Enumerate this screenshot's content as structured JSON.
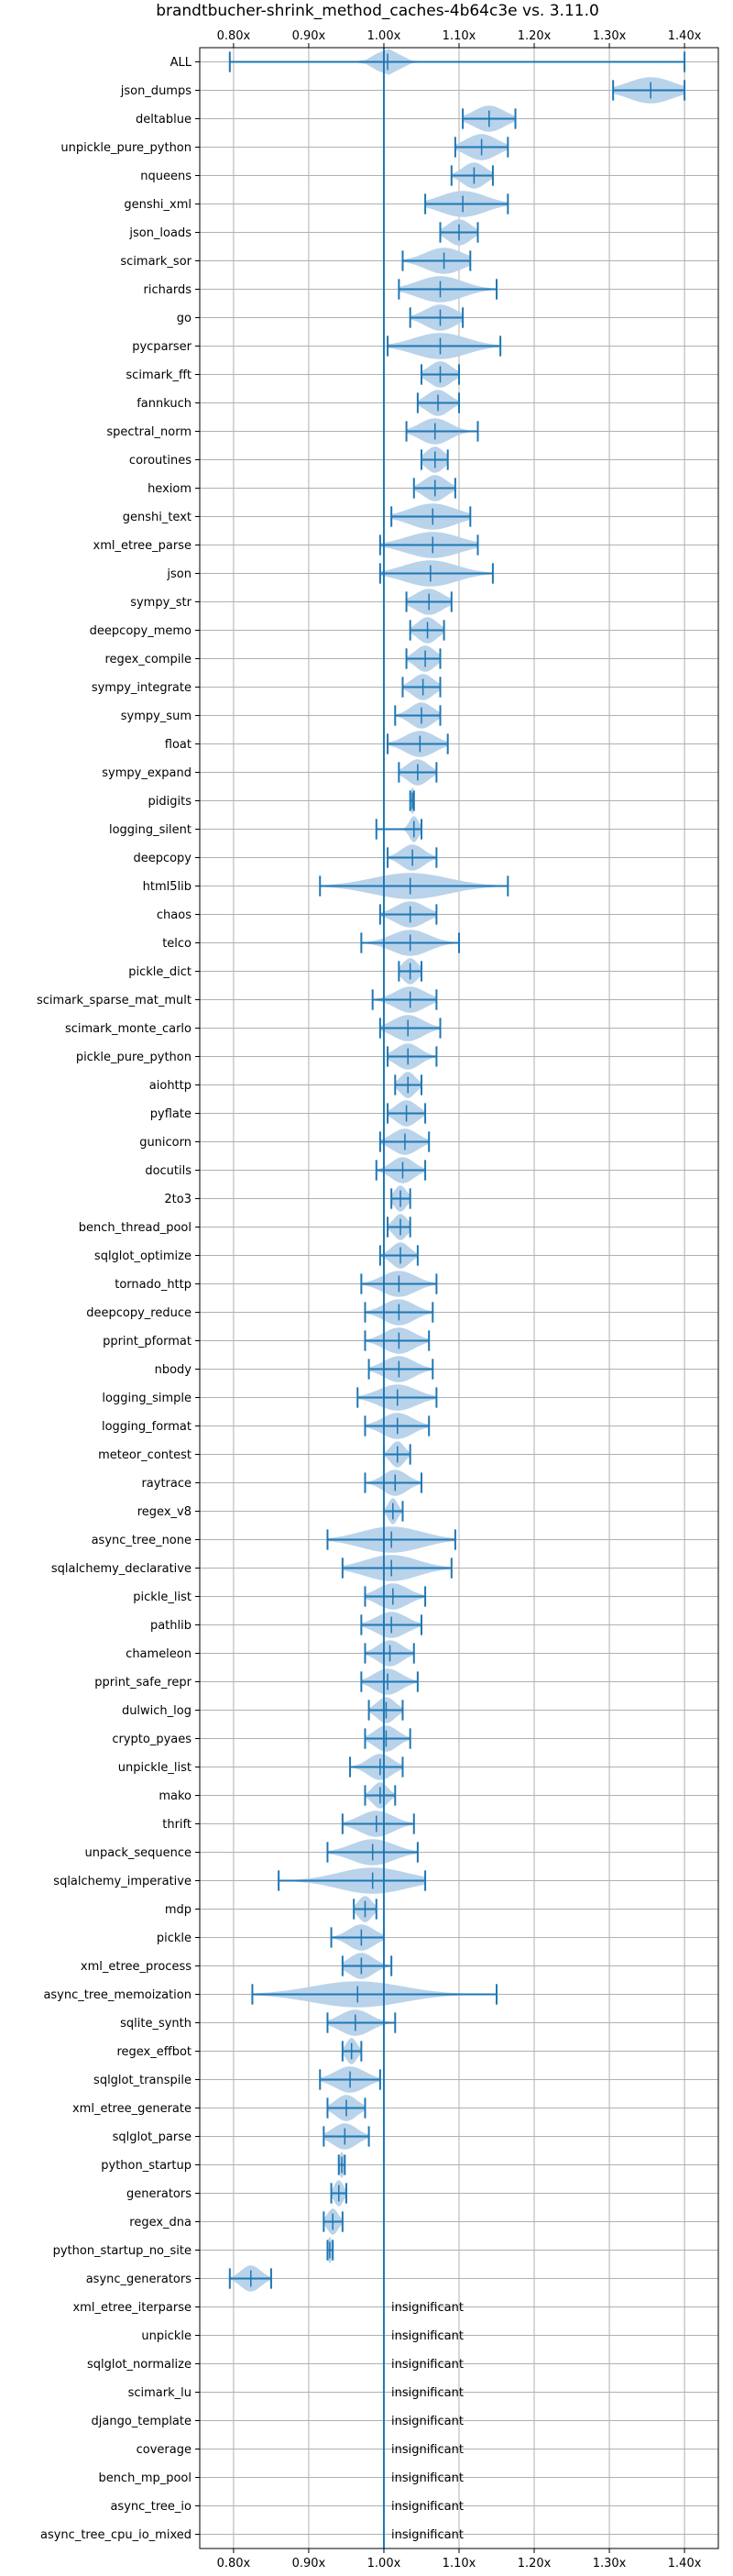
{
  "chart_data": {
    "type": "violin",
    "title": "brandtbucher-shrink_method_caches-4b64c3e vs. 3.11.0",
    "xlabel": "",
    "ylabel": "",
    "xlim": [
      0.755,
      1.445
    ],
    "xticks": [
      {
        "value": 0.8,
        "label": "0.80x"
      },
      {
        "value": 0.9,
        "label": "0.90x"
      },
      {
        "value": 1.0,
        "label": "1.00x"
      },
      {
        "value": 1.1,
        "label": "1.10x"
      },
      {
        "value": 1.2,
        "label": "1.20x"
      },
      {
        "value": 1.3,
        "label": "1.30x"
      },
      {
        "value": 1.4,
        "label": "1.40x"
      }
    ],
    "reference_line": 1.0,
    "grid": true,
    "colors": {
      "violin": "#b9d3ea",
      "line": "#1f77b4",
      "grid": "#b0b0b0"
    },
    "insignificant_label": "insignificant",
    "benchmarks": [
      {
        "name": "ALL",
        "min": 0.795,
        "max": 1.4,
        "median": 1.005,
        "spread": 0.015,
        "significant": true
      },
      {
        "name": "json_dumps",
        "min": 1.305,
        "max": 1.4,
        "median": 1.355,
        "spread": 0.03,
        "significant": true
      },
      {
        "name": "deltablue",
        "min": 1.105,
        "max": 1.175,
        "median": 1.14,
        "spread": 0.02,
        "significant": true
      },
      {
        "name": "unpickle_pure_python",
        "min": 1.095,
        "max": 1.165,
        "median": 1.13,
        "spread": 0.02,
        "significant": true
      },
      {
        "name": "nqueens",
        "min": 1.09,
        "max": 1.145,
        "median": 1.12,
        "spread": 0.015,
        "significant": true
      },
      {
        "name": "genshi_xml",
        "min": 1.055,
        "max": 1.165,
        "median": 1.105,
        "spread": 0.03,
        "significant": true
      },
      {
        "name": "json_loads",
        "min": 1.075,
        "max": 1.125,
        "median": 1.1,
        "spread": 0.015,
        "significant": true
      },
      {
        "name": "scimark_sor",
        "min": 1.025,
        "max": 1.115,
        "median": 1.08,
        "spread": 0.025,
        "significant": true
      },
      {
        "name": "richards",
        "min": 1.02,
        "max": 1.15,
        "median": 1.075,
        "spread": 0.03,
        "significant": true
      },
      {
        "name": "go",
        "min": 1.035,
        "max": 1.105,
        "median": 1.075,
        "spread": 0.02,
        "significant": true
      },
      {
        "name": "pycparser",
        "min": 1.005,
        "max": 1.155,
        "median": 1.075,
        "spread": 0.035,
        "significant": true
      },
      {
        "name": "scimark_fft",
        "min": 1.05,
        "max": 1.1,
        "median": 1.075,
        "spread": 0.015,
        "significant": true
      },
      {
        "name": "fannkuch",
        "min": 1.045,
        "max": 1.1,
        "median": 1.072,
        "spread": 0.015,
        "significant": true
      },
      {
        "name": "spectral_norm",
        "min": 1.03,
        "max": 1.125,
        "median": 1.068,
        "spread": 0.02,
        "significant": true
      },
      {
        "name": "coroutines",
        "min": 1.05,
        "max": 1.085,
        "median": 1.068,
        "spread": 0.012,
        "significant": true
      },
      {
        "name": "hexiom",
        "min": 1.04,
        "max": 1.095,
        "median": 1.068,
        "spread": 0.015,
        "significant": true
      },
      {
        "name": "genshi_text",
        "min": 1.01,
        "max": 1.115,
        "median": 1.065,
        "spread": 0.03,
        "significant": true
      },
      {
        "name": "xml_etree_parse",
        "min": 0.995,
        "max": 1.125,
        "median": 1.065,
        "spread": 0.035,
        "significant": true
      },
      {
        "name": "json",
        "min": 0.995,
        "max": 1.145,
        "median": 1.062,
        "spread": 0.035,
        "significant": true
      },
      {
        "name": "sympy_str",
        "min": 1.03,
        "max": 1.09,
        "median": 1.06,
        "spread": 0.018,
        "significant": true
      },
      {
        "name": "deepcopy_memo",
        "min": 1.035,
        "max": 1.08,
        "median": 1.058,
        "spread": 0.013,
        "significant": true
      },
      {
        "name": "regex_compile",
        "min": 1.03,
        "max": 1.075,
        "median": 1.055,
        "spread": 0.013,
        "significant": true
      },
      {
        "name": "sympy_integrate",
        "min": 1.025,
        "max": 1.075,
        "median": 1.052,
        "spread": 0.014,
        "significant": true
      },
      {
        "name": "sympy_sum",
        "min": 1.015,
        "max": 1.075,
        "median": 1.05,
        "spread": 0.015,
        "significant": true
      },
      {
        "name": "float",
        "min": 1.005,
        "max": 1.085,
        "median": 1.048,
        "spread": 0.02,
        "significant": true
      },
      {
        "name": "sympy_expand",
        "min": 1.02,
        "max": 1.07,
        "median": 1.045,
        "spread": 0.014,
        "significant": true
      },
      {
        "name": "pidigits",
        "min": 1.035,
        "max": 1.04,
        "median": 1.038,
        "spread": 0.003,
        "significant": true
      },
      {
        "name": "logging_silent",
        "min": 0.99,
        "max": 1.05,
        "median": 1.04,
        "spread": 0.006,
        "significant": true
      },
      {
        "name": "deepcopy",
        "min": 1.005,
        "max": 1.07,
        "median": 1.038,
        "spread": 0.015,
        "significant": true
      },
      {
        "name": "html5lib",
        "min": 0.915,
        "max": 1.165,
        "median": 1.035,
        "spread": 0.05,
        "significant": true
      },
      {
        "name": "chaos",
        "min": 0.995,
        "max": 1.07,
        "median": 1.035,
        "spread": 0.02,
        "significant": true
      },
      {
        "name": "telco",
        "min": 0.97,
        "max": 1.1,
        "median": 1.035,
        "spread": 0.025,
        "significant": true
      },
      {
        "name": "pickle_dict",
        "min": 1.02,
        "max": 1.05,
        "median": 1.035,
        "spread": 0.01,
        "significant": true
      },
      {
        "name": "scimark_sparse_mat_mult",
        "min": 0.985,
        "max": 1.07,
        "median": 1.035,
        "spread": 0.02,
        "significant": true
      },
      {
        "name": "scimark_monte_carlo",
        "min": 0.995,
        "max": 1.075,
        "median": 1.032,
        "spread": 0.02,
        "significant": true
      },
      {
        "name": "pickle_pure_python",
        "min": 1.005,
        "max": 1.07,
        "median": 1.032,
        "spread": 0.016,
        "significant": true
      },
      {
        "name": "aiohttp",
        "min": 1.015,
        "max": 1.05,
        "median": 1.032,
        "spread": 0.01,
        "significant": true
      },
      {
        "name": "pyflate",
        "min": 1.005,
        "max": 1.055,
        "median": 1.03,
        "spread": 0.014,
        "significant": true
      },
      {
        "name": "gunicorn",
        "min": 0.995,
        "max": 1.06,
        "median": 1.028,
        "spread": 0.017,
        "significant": true
      },
      {
        "name": "docutils",
        "min": 0.99,
        "max": 1.055,
        "median": 1.025,
        "spread": 0.015,
        "significant": true
      },
      {
        "name": "2to3",
        "min": 1.01,
        "max": 1.035,
        "median": 1.022,
        "spread": 0.008,
        "significant": true
      },
      {
        "name": "bench_thread_pool",
        "min": 1.005,
        "max": 1.035,
        "median": 1.022,
        "spread": 0.009,
        "significant": true
      },
      {
        "name": "sqlglot_optimize",
        "min": 0.995,
        "max": 1.045,
        "median": 1.022,
        "spread": 0.012,
        "significant": true
      },
      {
        "name": "tornado_http",
        "min": 0.97,
        "max": 1.07,
        "median": 1.02,
        "spread": 0.022,
        "significant": true
      },
      {
        "name": "deepcopy_reduce",
        "min": 0.975,
        "max": 1.065,
        "median": 1.02,
        "spread": 0.02,
        "significant": true
      },
      {
        "name": "pprint_pformat",
        "min": 0.975,
        "max": 1.06,
        "median": 1.02,
        "spread": 0.02,
        "significant": true
      },
      {
        "name": "nbody",
        "min": 0.98,
        "max": 1.065,
        "median": 1.02,
        "spread": 0.02,
        "significant": true
      },
      {
        "name": "logging_simple",
        "min": 0.965,
        "max": 1.07,
        "median": 1.018,
        "spread": 0.025,
        "significant": true
      },
      {
        "name": "logging_format",
        "min": 0.975,
        "max": 1.06,
        "median": 1.018,
        "spread": 0.02,
        "significant": true
      },
      {
        "name": "meteor_contest",
        "min": 1.0,
        "max": 1.035,
        "median": 1.018,
        "spread": 0.009,
        "significant": true
      },
      {
        "name": "raytrace",
        "min": 0.975,
        "max": 1.05,
        "median": 1.015,
        "spread": 0.016,
        "significant": true
      },
      {
        "name": "regex_v8",
        "min": 1.0,
        "max": 1.025,
        "median": 1.012,
        "spread": 0.006,
        "significant": true
      },
      {
        "name": "async_tree_none",
        "min": 0.925,
        "max": 1.095,
        "median": 1.01,
        "spread": 0.04,
        "significant": true
      },
      {
        "name": "sqlalchemy_declarative",
        "min": 0.945,
        "max": 1.09,
        "median": 1.01,
        "spread": 0.035,
        "significant": true
      },
      {
        "name": "pickle_list",
        "min": 0.975,
        "max": 1.055,
        "median": 1.012,
        "spread": 0.02,
        "significant": true
      },
      {
        "name": "pathlib",
        "min": 0.97,
        "max": 1.05,
        "median": 1.01,
        "spread": 0.02,
        "significant": true
      },
      {
        "name": "chameleon",
        "min": 0.975,
        "max": 1.04,
        "median": 1.008,
        "spread": 0.016,
        "significant": true
      },
      {
        "name": "pprint_safe_repr",
        "min": 0.97,
        "max": 1.045,
        "median": 1.005,
        "spread": 0.018,
        "significant": true
      },
      {
        "name": "dulwich_log",
        "min": 0.98,
        "max": 1.025,
        "median": 1.003,
        "spread": 0.012,
        "significant": true
      },
      {
        "name": "crypto_pyaes",
        "min": 0.975,
        "max": 1.035,
        "median": 1.003,
        "spread": 0.015,
        "significant": true
      },
      {
        "name": "unpickle_list",
        "min": 0.955,
        "max": 1.025,
        "median": 0.995,
        "spread": 0.016,
        "significant": true
      },
      {
        "name": "mako",
        "min": 0.975,
        "max": 1.015,
        "median": 0.995,
        "spread": 0.01,
        "significant": true
      },
      {
        "name": "thrift",
        "min": 0.945,
        "max": 1.04,
        "median": 0.99,
        "spread": 0.022,
        "significant": true
      },
      {
        "name": "unpack_sequence",
        "min": 0.925,
        "max": 1.045,
        "median": 0.985,
        "spread": 0.028,
        "significant": true
      },
      {
        "name": "sqlalchemy_imperative",
        "min": 0.86,
        "max": 1.055,
        "median": 0.985,
        "spread": 0.045,
        "significant": true
      },
      {
        "name": "mdp",
        "min": 0.96,
        "max": 0.99,
        "median": 0.975,
        "spread": 0.009,
        "significant": true
      },
      {
        "name": "pickle",
        "min": 0.93,
        "max": 1.0,
        "median": 0.97,
        "spread": 0.017,
        "significant": true
      },
      {
        "name": "xml_etree_process",
        "min": 0.945,
        "max": 1.01,
        "median": 0.97,
        "spread": 0.016,
        "significant": true
      },
      {
        "name": "async_tree_memoization",
        "min": 0.825,
        "max": 1.15,
        "median": 0.965,
        "spread": 0.06,
        "significant": true
      },
      {
        "name": "sqlite_synth",
        "min": 0.925,
        "max": 1.015,
        "median": 0.962,
        "spread": 0.02,
        "significant": true
      },
      {
        "name": "regex_effbot",
        "min": 0.945,
        "max": 0.97,
        "median": 0.957,
        "spread": 0.007,
        "significant": true
      },
      {
        "name": "sqlglot_transpile",
        "min": 0.915,
        "max": 0.995,
        "median": 0.955,
        "spread": 0.02,
        "significant": true
      },
      {
        "name": "xml_etree_generate",
        "min": 0.925,
        "max": 0.975,
        "median": 0.95,
        "spread": 0.014,
        "significant": true
      },
      {
        "name": "sqlglot_parse",
        "min": 0.92,
        "max": 0.98,
        "median": 0.948,
        "spread": 0.016,
        "significant": true
      },
      {
        "name": "python_startup",
        "min": 0.94,
        "max": 0.948,
        "median": 0.944,
        "spread": 0.003,
        "significant": true
      },
      {
        "name": "generators",
        "min": 0.93,
        "max": 0.95,
        "median": 0.94,
        "spread": 0.006,
        "significant": true
      },
      {
        "name": "regex_dna",
        "min": 0.92,
        "max": 0.945,
        "median": 0.932,
        "spread": 0.007,
        "significant": true
      },
      {
        "name": "python_startup_no_site",
        "min": 0.925,
        "max": 0.932,
        "median": 0.928,
        "spread": 0.003,
        "significant": true
      },
      {
        "name": "async_generators",
        "min": 0.795,
        "max": 0.85,
        "median": 0.823,
        "spread": 0.013,
        "significant": true
      },
      {
        "name": "xml_etree_iterparse",
        "significant": false
      },
      {
        "name": "unpickle",
        "significant": false
      },
      {
        "name": "sqlglot_normalize",
        "significant": false
      },
      {
        "name": "scimark_lu",
        "significant": false
      },
      {
        "name": "django_template",
        "significant": false
      },
      {
        "name": "coverage",
        "significant": false
      },
      {
        "name": "bench_mp_pool",
        "significant": false
      },
      {
        "name": "async_tree_io",
        "significant": false
      },
      {
        "name": "async_tree_cpu_io_mixed",
        "significant": false
      }
    ]
  }
}
